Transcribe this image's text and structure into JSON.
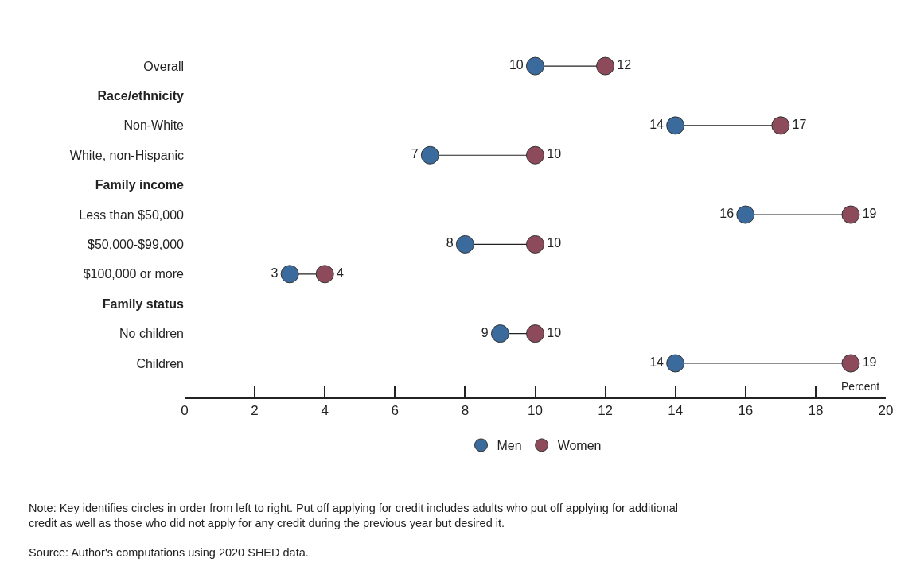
{
  "chart_data": {
    "type": "scatter",
    "orientation": "horizontal",
    "marker": "circle",
    "data_labels": true,
    "grid": false,
    "legend": "bottom",
    "categories": [
      "Overall",
      "Race/ethnicity",
      "Non-White",
      "White, non-Hispanic",
      "Family income",
      "Less than $50,000",
      "$50,000-$99,000",
      "$100,000 or more",
      "Family status",
      "No children",
      "Children"
    ],
    "series": [
      {
        "name": "Men",
        "color": "#3b6b9c",
        "values": [
          10,
          null,
          14,
          7,
          null,
          16,
          8,
          3,
          null,
          9,
          14
        ]
      },
      {
        "name": "Women",
        "color": "#8c4a5a",
        "values": [
          12,
          null,
          17,
          10,
          null,
          19,
          10,
          4,
          null,
          10,
          19
        ]
      }
    ],
    "xlabel": "Percent",
    "xlim": [
      0,
      20
    ],
    "xticks": [
      0,
      2,
      4,
      6,
      8,
      10,
      12,
      14,
      16,
      18,
      20
    ],
    "annotations": [
      "Note: Key identifies circles in order from left to right. Put off applying for credit includes adults who put off applying for additional credit as well as those who did not apply for any credit during the previous year but desired it.",
      "Source: Author's computations using 2020 SHED data."
    ]
  }
}
